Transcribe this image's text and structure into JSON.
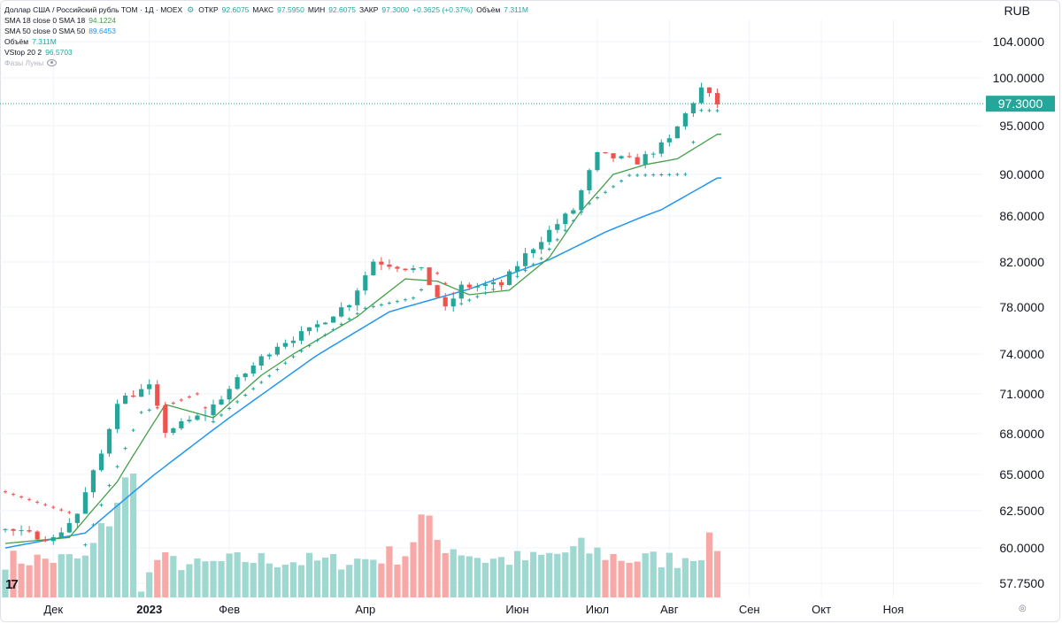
{
  "header": {
    "symbol": "Доллар США / Российский рубль TOM · 1Д · MOEX",
    "ohlc": [
      {
        "label": "ОТКР",
        "value": "92.6075"
      },
      {
        "label": "МАКС",
        "value": "97.5950"
      },
      {
        "label": "МИН",
        "value": "92.6075"
      },
      {
        "label": "ЗАКР",
        "value": "97.3000"
      }
    ],
    "change": "+0.3625 (+0.37%)",
    "volume_label": "Объём",
    "volume_value": "7.311M"
  },
  "indicators": [
    {
      "name": "SMA 18 close 0 SMA 18",
      "value": "94.1224"
    },
    {
      "name": "SMA 50 close 0 SMA 50",
      "value": "89.6453"
    },
    {
      "name": "Объём",
      "value": "7.311M"
    },
    {
      "name": "VStop 20 2",
      "value": "96.5703"
    },
    {
      "name": "Фазы Луны",
      "value": ""
    }
  ],
  "currency": "RUB",
  "last_price_label": "97.3000",
  "colors": {
    "up": "#26a69a",
    "down": "#ef5350",
    "sma18": "#43a047",
    "sma50": "#2196f3",
    "vol_up": "#9ed8d0",
    "vol_down": "#f7a9a7",
    "grid": "#f0f3fa"
  },
  "chart_data": {
    "type": "candlestick",
    "title": "Доллар США / Российский рубль TOM · 1Д · MOEX",
    "ylim": [
      56.8,
      105.5
    ],
    "y_ticks": [
      104,
      100,
      95,
      90,
      86,
      82,
      78,
      74,
      71,
      68,
      65,
      62.5,
      60,
      57.75
    ],
    "y_tick_labels": [
      "104.0000",
      "100.0000",
      "95.0000",
      "90.0000",
      "86.0000",
      "82.0000",
      "78.0000",
      "74.0000",
      "71.0000",
      "68.0000",
      "65.0000",
      "62.5000",
      "60.0000",
      "57.7500"
    ],
    "x_labels": [
      "Дек",
      "2023",
      "Фев",
      "Апр",
      "Июн",
      "Июл",
      "Авг",
      "Сен",
      "Окт",
      "Ноя"
    ],
    "x_label_positions_day": [
      6,
      18,
      28,
      45,
      64,
      74,
      83,
      93,
      102,
      111
    ],
    "last_price": 97.3,
    "close_key": [
      [
        0,
        61.2
      ],
      [
        6,
        60.6
      ],
      [
        9,
        62.3
      ],
      [
        12,
        66.5
      ],
      [
        14,
        70.5
      ],
      [
        18,
        71.5
      ],
      [
        20,
        68.2
      ],
      [
        25,
        69.5
      ],
      [
        29,
        72.0
      ],
      [
        34,
        74.8
      ],
      [
        38,
        76.0
      ],
      [
        43,
        78.4
      ],
      [
        46,
        82.1
      ],
      [
        52,
        81.2
      ],
      [
        55,
        77.8
      ],
      [
        57,
        79.8
      ],
      [
        62,
        80.0
      ],
      [
        65,
        82.6
      ],
      [
        68,
        84.7
      ],
      [
        71,
        86.6
      ],
      [
        74,
        92.0
      ],
      [
        79,
        91.3
      ],
      [
        83,
        93.5
      ],
      [
        87,
        98.9
      ],
      [
        89,
        97.3
      ]
    ],
    "sma18_key": [
      [
        0,
        60.3
      ],
      [
        8,
        60.7
      ],
      [
        14,
        64.5
      ],
      [
        20,
        70.2
      ],
      [
        26,
        69.2
      ],
      [
        32,
        72.4
      ],
      [
        38,
        74.8
      ],
      [
        44,
        77.2
      ],
      [
        50,
        80.5
      ],
      [
        54,
        80.3
      ],
      [
        58,
        79.1
      ],
      [
        63,
        79.5
      ],
      [
        68,
        82.4
      ],
      [
        72,
        86.5
      ],
      [
        76,
        90.0
      ],
      [
        80,
        91.0
      ],
      [
        84,
        91.6
      ],
      [
        89,
        94.12
      ]
    ],
    "sma50_key": [
      [
        0,
        60.0
      ],
      [
        10,
        61.0
      ],
      [
        18,
        64.7
      ],
      [
        28,
        69.2
      ],
      [
        38,
        73.5
      ],
      [
        48,
        77.6
      ],
      [
        58,
        79.6
      ],
      [
        68,
        82.2
      ],
      [
        75,
        84.6
      ],
      [
        82,
        86.6
      ],
      [
        89,
        89.65
      ]
    ],
    "vstop_key": [
      [
        0,
        63.8
      ],
      [
        9,
        62.2
      ],
      [
        10,
        60.2
      ],
      [
        17,
        69.6
      ],
      [
        21,
        70.3
      ],
      [
        24,
        71.0
      ],
      [
        26,
        68.9
      ],
      [
        30,
        70.9
      ],
      [
        36,
        73.8
      ],
      [
        45,
        77.9
      ],
      [
        51,
        78.8
      ],
      [
        54,
        81.0
      ],
      [
        57,
        78.3
      ],
      [
        63,
        80.2
      ],
      [
        67,
        82.3
      ],
      [
        73,
        87.2
      ],
      [
        78,
        89.9
      ],
      [
        85,
        90.0
      ],
      [
        87,
        96.6
      ],
      [
        89,
        96.57
      ]
    ],
    "volume_key": [
      [
        0,
        0.3
      ],
      [
        10,
        0.3
      ],
      [
        12,
        0.5
      ],
      [
        14,
        0.8
      ],
      [
        16,
        0.9
      ],
      [
        17,
        0.06
      ],
      [
        19,
        0.3
      ],
      [
        24,
        0.25
      ],
      [
        30,
        0.3
      ],
      [
        40,
        0.28
      ],
      [
        45,
        0.3
      ],
      [
        50,
        0.35
      ],
      [
        52,
        0.6
      ],
      [
        54,
        0.45
      ],
      [
        60,
        0.3
      ],
      [
        66,
        0.3
      ],
      [
        72,
        0.38
      ],
      [
        78,
        0.3
      ],
      [
        84,
        0.3
      ],
      [
        89,
        0.43
      ]
    ]
  }
}
